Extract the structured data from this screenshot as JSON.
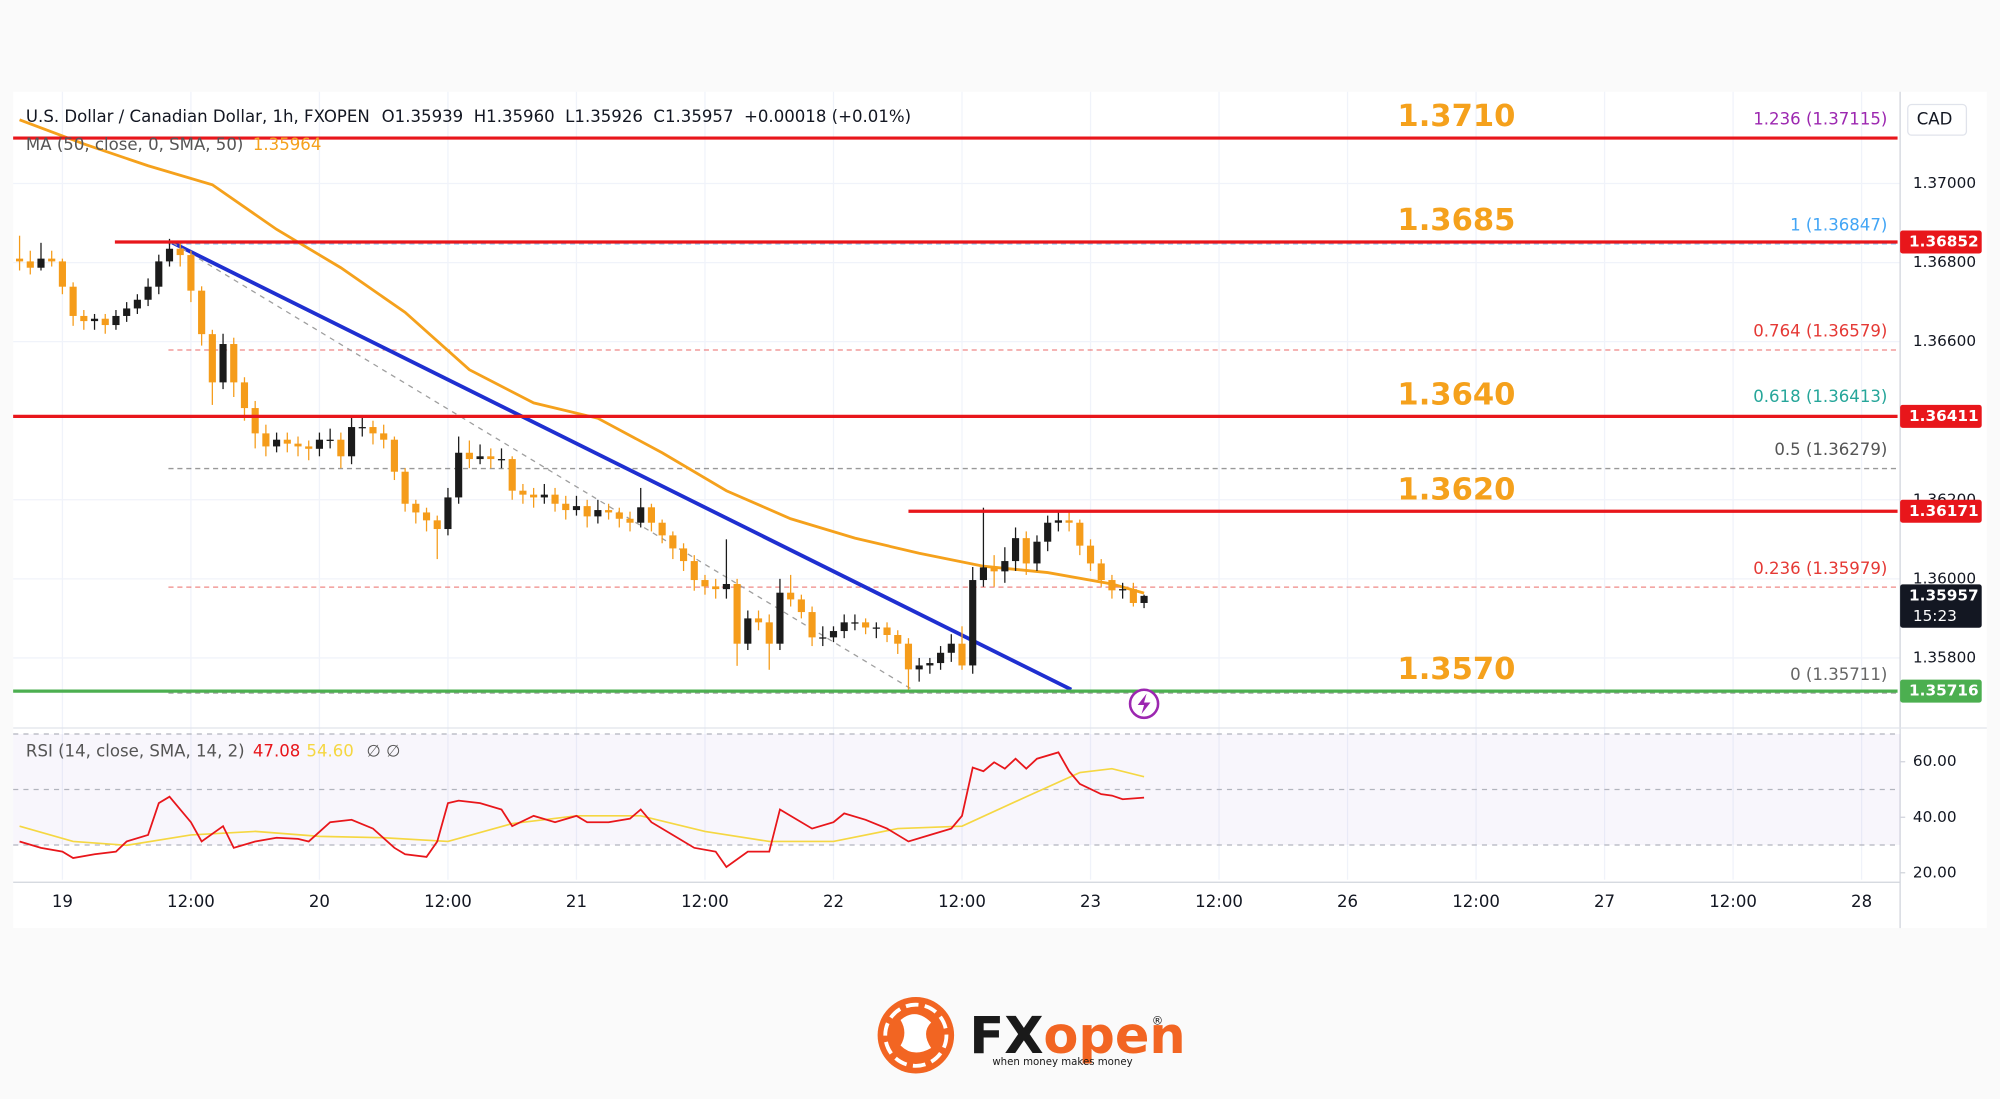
{
  "chart_data": {
    "type": "candlestick",
    "title": "U.S. Dollar / Canadian Dollar, 1h, FXOPEN",
    "ohlc_readout": "O1.35939  H1.35960  L1.35926  C1.35957  +0.00018 (+0.01%)",
    "currency": "CAD",
    "up_color": "#1b1b1b",
    "down_color": "#f59c1a",
    "ylim": [
      1.35626,
      1.37232
    ],
    "yticks": [
      {
        "value": 1.37,
        "label": "1.37000"
      },
      {
        "value": 1.368,
        "label": "1.36800"
      },
      {
        "value": 1.366,
        "label": "1.36600"
      },
      {
        "value": 1.362,
        "label": "1.36200"
      },
      {
        "value": 1.36,
        "label": "1.36000"
      },
      {
        "value": 1.358,
        "label": "1.35800"
      }
    ],
    "grid": true,
    "x_labels": [
      "19",
      "12:00",
      "20",
      "12:00",
      "21",
      "12:00",
      "22",
      "12:00",
      "23",
      "12:00",
      "26",
      "12:00",
      "27",
      "12:00",
      "28"
    ],
    "ohlc": [
      [
        1.3681,
        1.36868,
        1.3678,
        1.36803
      ],
      [
        1.36803,
        1.3683,
        1.3677,
        1.36787
      ],
      [
        1.36787,
        1.3685,
        1.3678,
        1.3681
      ],
      [
        1.3681,
        1.3683,
        1.3679,
        1.36803
      ],
      [
        1.36803,
        1.3681,
        1.3672,
        1.36739
      ],
      [
        1.36739,
        1.3675,
        1.3664,
        1.36665
      ],
      [
        1.36665,
        1.3668,
        1.3663,
        1.36652
      ],
      [
        1.36652,
        1.3667,
        1.3663,
        1.36658
      ],
      [
        1.36658,
        1.3667,
        1.3662,
        1.36642
      ],
      [
        1.36642,
        1.3668,
        1.3663,
        1.36665
      ],
      [
        1.36665,
        1.367,
        1.3665,
        1.36684
      ],
      [
        1.36684,
        1.3672,
        1.3667,
        1.36706
      ],
      [
        1.36706,
        1.3676,
        1.3669,
        1.36739
      ],
      [
        1.36739,
        1.3682,
        1.3672,
        1.36803
      ],
      [
        1.36803,
        1.3686,
        1.3679,
        1.36835
      ],
      [
        1.36835,
        1.3685,
        1.3679,
        1.36819
      ],
      [
        1.36819,
        1.3683,
        1.367,
        1.36729
      ],
      [
        1.36729,
        1.3674,
        1.3659,
        1.36619
      ],
      [
        1.36619,
        1.3663,
        1.3644,
        1.36497
      ],
      [
        1.36497,
        1.3662,
        1.3648,
        1.36594
      ],
      [
        1.36594,
        1.3661,
        1.3646,
        1.36497
      ],
      [
        1.36497,
        1.3651,
        1.364,
        1.36432
      ],
      [
        1.36432,
        1.3645,
        1.3633,
        1.36368
      ],
      [
        1.36368,
        1.3639,
        1.3631,
        1.36335
      ],
      [
        1.36335,
        1.3637,
        1.3632,
        1.36352
      ],
      [
        1.36352,
        1.3637,
        1.3632,
        1.36342
      ],
      [
        1.36342,
        1.3636,
        1.3631,
        1.36335
      ],
      [
        1.36335,
        1.3635,
        1.363,
        1.36329
      ],
      [
        1.36329,
        1.3637,
        1.3631,
        1.36352
      ],
      [
        1.36352,
        1.3638,
        1.3633,
        1.36352
      ],
      [
        1.36352,
        1.3637,
        1.3628,
        1.3631
      ],
      [
        1.3631,
        1.3641,
        1.3629,
        1.36384
      ],
      [
        1.36384,
        1.3641,
        1.3636,
        1.36384
      ],
      [
        1.36384,
        1.364,
        1.3634,
        1.36368
      ],
      [
        1.36368,
        1.3639,
        1.3633,
        1.36352
      ],
      [
        1.36352,
        1.3636,
        1.3625,
        1.36271
      ],
      [
        1.36271,
        1.3628,
        1.3617,
        1.3619
      ],
      [
        1.3619,
        1.362,
        1.3614,
        1.36168
      ],
      [
        1.36168,
        1.3618,
        1.3612,
        1.36148
      ],
      [
        1.36148,
        1.3616,
        1.3605,
        1.36126
      ],
      [
        1.36126,
        1.3623,
        1.3611,
        1.36206
      ],
      [
        1.36206,
        1.3636,
        1.3619,
        1.36319
      ],
      [
        1.36319,
        1.3635,
        1.3628,
        1.36303
      ],
      [
        1.36303,
        1.3634,
        1.3629,
        1.3631
      ],
      [
        1.3631,
        1.3633,
        1.3628,
        1.36303
      ],
      [
        1.36303,
        1.3633,
        1.3628,
        1.36303
      ],
      [
        1.36303,
        1.3631,
        1.362,
        1.36223
      ],
      [
        1.36223,
        1.3624,
        1.3619,
        1.36213
      ],
      [
        1.36213,
        1.3623,
        1.3618,
        1.36206
      ],
      [
        1.36206,
        1.3624,
        1.3619,
        1.36213
      ],
      [
        1.36213,
        1.3623,
        1.3617,
        1.3619
      ],
      [
        1.3619,
        1.3621,
        1.3615,
        1.36174
      ],
      [
        1.36174,
        1.3621,
        1.3616,
        1.36184
      ],
      [
        1.36184,
        1.362,
        1.3613,
        1.36158
      ],
      [
        1.36158,
        1.362,
        1.3614,
        1.36174
      ],
      [
        1.36174,
        1.3619,
        1.3615,
        1.36168
      ],
      [
        1.36168,
        1.3618,
        1.3613,
        1.36152
      ],
      [
        1.36152,
        1.3617,
        1.3612,
        1.36142
      ],
      [
        1.36142,
        1.3623,
        1.3613,
        1.36181
      ],
      [
        1.36181,
        1.3619,
        1.3612,
        1.36142
      ],
      [
        1.36142,
        1.3615,
        1.3609,
        1.3611
      ],
      [
        1.3611,
        1.3612,
        1.3605,
        1.36077
      ],
      [
        1.36077,
        1.3609,
        1.3602,
        1.36045
      ],
      [
        1.36045,
        1.3606,
        1.3597,
        1.35997
      ],
      [
        1.35997,
        1.3601,
        1.3596,
        1.35981
      ],
      [
        1.35981,
        1.36,
        1.3595,
        1.35974
      ],
      [
        1.35974,
        1.361,
        1.3595,
        1.35987
      ],
      [
        1.35987,
        1.36,
        1.3578,
        1.35836
      ],
      [
        1.35836,
        1.3592,
        1.3582,
        1.359
      ],
      [
        1.359,
        1.3592,
        1.3587,
        1.3589
      ],
      [
        1.3589,
        1.3591,
        1.3577,
        1.35836
      ],
      [
        1.35836,
        1.36,
        1.3582,
        1.35965
      ],
      [
        1.35965,
        1.3601,
        1.3593,
        1.35948
      ],
      [
        1.35948,
        1.3596,
        1.359,
        1.35916
      ],
      [
        1.35916,
        1.3593,
        1.3583,
        1.35852
      ],
      [
        1.35852,
        1.3588,
        1.3583,
        1.35852
      ],
      [
        1.35852,
        1.3588,
        1.3584,
        1.35868
      ],
      [
        1.35868,
        1.3591,
        1.3585,
        1.3589
      ],
      [
        1.3589,
        1.3591,
        1.3587,
        1.3589
      ],
      [
        1.3589,
        1.359,
        1.3586,
        1.35877
      ],
      [
        1.35877,
        1.3589,
        1.3585,
        1.35877
      ],
      [
        1.35877,
        1.3589,
        1.3584,
        1.35858
      ],
      [
        1.35858,
        1.3587,
        1.3581,
        1.35836
      ],
      [
        1.35836,
        1.3585,
        1.3572,
        1.35771
      ],
      [
        1.35771,
        1.358,
        1.3574,
        1.35781
      ],
      [
        1.35781,
        1.358,
        1.3576,
        1.35787
      ],
      [
        1.35787,
        1.3583,
        1.3577,
        1.35813
      ],
      [
        1.35813,
        1.3586,
        1.3579,
        1.35836
      ],
      [
        1.35836,
        1.3588,
        1.3577,
        1.35781
      ],
      [
        1.35781,
        1.3603,
        1.3576,
        1.35997
      ],
      [
        1.35997,
        1.3618,
        1.3598,
        1.36029
      ],
      [
        1.36029,
        1.3606,
        1.3598,
        1.36019
      ],
      [
        1.36019,
        1.3608,
        1.3599,
        1.36045
      ],
      [
        1.36045,
        1.3613,
        1.3602,
        1.36103
      ],
      [
        1.36103,
        1.3612,
        1.3601,
        1.36039
      ],
      [
        1.36039,
        1.3611,
        1.3602,
        1.36094
      ],
      [
        1.36094,
        1.3616,
        1.3607,
        1.36142
      ],
      [
        1.36142,
        1.3617,
        1.3612,
        1.36148
      ],
      [
        1.36148,
        1.36171,
        1.3612,
        1.36142
      ],
      [
        1.36142,
        1.3615,
        1.3606,
        1.36084
      ],
      [
        1.36084,
        1.361,
        1.3602,
        1.36039
      ],
      [
        1.36039,
        1.3605,
        1.3598,
        1.35997
      ],
      [
        1.35997,
        1.3601,
        1.3595,
        1.35971
      ],
      [
        1.35971,
        1.3599,
        1.3595,
        1.35974
      ],
      [
        1.35974,
        1.3599,
        1.3593,
        1.35939
      ],
      [
        1.35939,
        1.3596,
        1.35926,
        1.35957
      ]
    ],
    "ma": {
      "name": "MA (50, close, 0, SMA, 50)",
      "color": "#f5a11c",
      "x": [
        0,
        6,
        12,
        18,
        24,
        30,
        36,
        42,
        48,
        54,
        60,
        66,
        72,
        78,
        84,
        90,
        96,
        102,
        105
      ],
      "values": [
        1.37161,
        1.371,
        1.37045,
        1.36997,
        1.36884,
        1.36787,
        1.36674,
        1.36529,
        1.36445,
        1.36406,
        1.36319,
        1.36223,
        1.36152,
        1.36103,
        1.36065,
        1.36032,
        1.36016,
        1.35987,
        1.35964
      ]
    },
    "levels": [
      {
        "label": "1.3710",
        "price": 1.37115,
        "from": -0.6,
        "color": "#e8161b"
      },
      {
        "label": "1.3685",
        "price": 1.36852,
        "from": 8.9,
        "color": "#e8161b"
      },
      {
        "label": "1.3640",
        "price": 1.36411,
        "from": -0.6,
        "color": "#e8161b"
      },
      {
        "label": "1.3620",
        "price": 1.36171,
        "from": 83,
        "color": "#e8161b"
      },
      {
        "label": "1.3570",
        "price": 1.35716,
        "from": -0.6,
        "color": "#4caf50"
      }
    ],
    "level_label_color": "#f5a11c",
    "fib_from": 13.9,
    "fib": [
      {
        "label": "1.236 (1.37115)",
        "price": 1.37115,
        "color": "#9c27b0"
      },
      {
        "label": "1 (1.36847)",
        "price": 1.36847,
        "color": "#42a5f5"
      },
      {
        "label": "0.764 (1.36579)",
        "price": 1.36579,
        "color": "#e53935"
      },
      {
        "label": "0.618 (1.36413)",
        "price": 1.36413,
        "color": "#26a69a"
      },
      {
        "label": "0.5 (1.36279)",
        "price": 1.36279,
        "color": "#555555"
      },
      {
        "label": "0.236 (1.35979)",
        "price": 1.35979,
        "color": "#e53935"
      },
      {
        "label": "0 (1.35711)",
        "price": 1.35711,
        "color": "#666666"
      }
    ],
    "trendlines": [
      {
        "from": [
          14.3,
          1.3685
        ],
        "to": [
          98.2,
          1.3572
        ],
        "color": "#1f2fd0",
        "dashed": false
      },
      {
        "from": [
          14.3,
          1.3685
        ],
        "to": [
          83.9,
          1.35711
        ],
        "color": "#9e9e9e",
        "dashed": true
      }
    ],
    "badges": [
      {
        "price": 1.36852,
        "color": "#e8161b"
      },
      {
        "price": 1.36411,
        "color": "#e8161b"
      },
      {
        "price": 1.36171,
        "color": "#e8161b"
      },
      {
        "price": 1.35957,
        "color": "#131722",
        "countdown": "15:23"
      },
      {
        "price": 1.35716,
        "color": "#4caf50"
      }
    ],
    "rsi": {
      "name": "RSI (14, close, SMA, 14, 2)",
      "color": "#e8161b",
      "ylim": [
        17.5,
        71.7
      ],
      "yticks": [
        {
          "value": 60,
          "label": "60.00"
        },
        {
          "value": 40,
          "label": "40.00"
        },
        {
          "value": 20,
          "label": "20.00"
        }
      ],
      "levels": [
        70,
        50,
        30
      ],
      "x": [
        0,
        2,
        4,
        5,
        7,
        9,
        10,
        12,
        13,
        14,
        16,
        17,
        19,
        20,
        22,
        24,
        26,
        27,
        29,
        31,
        33,
        35,
        36,
        38,
        39,
        40,
        41,
        43,
        45,
        46,
        48,
        50,
        52,
        53,
        55,
        57,
        58,
        59,
        61,
        63,
        65,
        66,
        68,
        70,
        71,
        72,
        74,
        76,
        77,
        79,
        81,
        83,
        85,
        87,
        88,
        89,
        90,
        91,
        92,
        93,
        94,
        95,
        97,
        98,
        99,
        101,
        102,
        103,
        105
      ],
      "values": [
        31.3,
        29.0,
        27.6,
        25.3,
        26.7,
        27.6,
        31.3,
        33.6,
        45.1,
        47.4,
        38.2,
        31.3,
        36.8,
        29.0,
        31.3,
        32.6,
        32.2,
        31.3,
        38.2,
        39.1,
        35.9,
        29.0,
        26.7,
        25.7,
        31.3,
        45.1,
        46.0,
        45.1,
        42.8,
        36.8,
        40.5,
        38.2,
        40.5,
        38.2,
        38.2,
        39.5,
        42.8,
        38.2,
        33.6,
        29.0,
        27.6,
        22.1,
        27.6,
        27.6,
        42.8,
        40.5,
        35.9,
        38.2,
        41.4,
        39.1,
        35.9,
        31.3,
        33.6,
        35.9,
        40.5,
        57.9,
        56.6,
        59.8,
        57.5,
        61.1,
        57.5,
        61.1,
        63.4,
        56.6,
        52.0,
        48.3,
        47.8,
        46.5,
        47.08
      ],
      "sma": {
        "color": "#f5d742",
        "legend_value": "54.60",
        "x": [
          0,
          5,
          10,
          16,
          22,
          28,
          34,
          40,
          46,
          52,
          58,
          64,
          70,
          76,
          82,
          88,
          94,
          99,
          102,
          105
        ],
        "values": [
          36.8,
          31.3,
          29.9,
          33.6,
          34.9,
          33.1,
          32.6,
          31.3,
          37.7,
          40.5,
          40.5,
          34.9,
          31.3,
          31.3,
          35.9,
          36.8,
          47.4,
          56.1,
          57.5,
          54.6
        ]
      },
      "extra": "∅ ∅"
    },
    "logo": {
      "brand_a": "FX",
      "brand_b": "open",
      "registered": "®",
      "tagline": "when money makes money"
    }
  }
}
